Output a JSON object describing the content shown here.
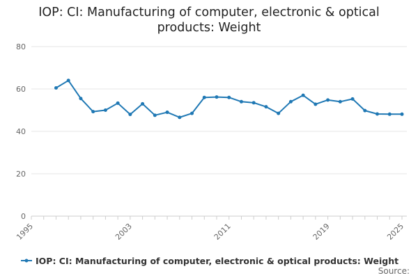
{
  "chart_data": {
    "type": "line",
    "title_lines": [
      "IOP: CI: Manufacturing of computer, electronic & optical",
      "products: Weight"
    ],
    "xlabel": "",
    "ylabel": "",
    "xlim": [
      1995,
      2025
    ],
    "ylim": [
      0,
      80
    ],
    "x_ticks": [
      "1995",
      "2003",
      "2011",
      "2019",
      "2025"
    ],
    "y_ticks": [
      "0",
      "20",
      "40",
      "60",
      "80"
    ],
    "grid": true,
    "legend_position": "bottom",
    "series": [
      {
        "name": "IOP: CI: Manufacturing of computer, electronic & optical products: Weight",
        "color": "#1f78b4",
        "x": [
          1997,
          1998,
          1999,
          2000,
          2001,
          2002,
          2003,
          2004,
          2005,
          2006,
          2007,
          2008,
          2009,
          2010,
          2011,
          2012,
          2013,
          2014,
          2015,
          2016,
          2017,
          2018,
          2019,
          2020,
          2021,
          2022,
          2023,
          2024,
          2025
        ],
        "values": [
          60.5,
          64.0,
          55.5,
          49.3,
          50.0,
          53.3,
          48.0,
          53.0,
          47.6,
          49.0,
          46.6,
          48.5,
          56.0,
          56.2,
          56.0,
          54.0,
          53.5,
          51.6,
          48.5,
          54.0,
          57.0,
          52.8,
          54.8,
          54.0,
          55.3,
          49.8,
          48.2,
          48.1,
          48.1
        ]
      }
    ]
  },
  "legend": {
    "label": "IOP: CI: Manufacturing of computer, electronic & optical products: Weight"
  },
  "footer": {
    "source_label": "Source:"
  }
}
